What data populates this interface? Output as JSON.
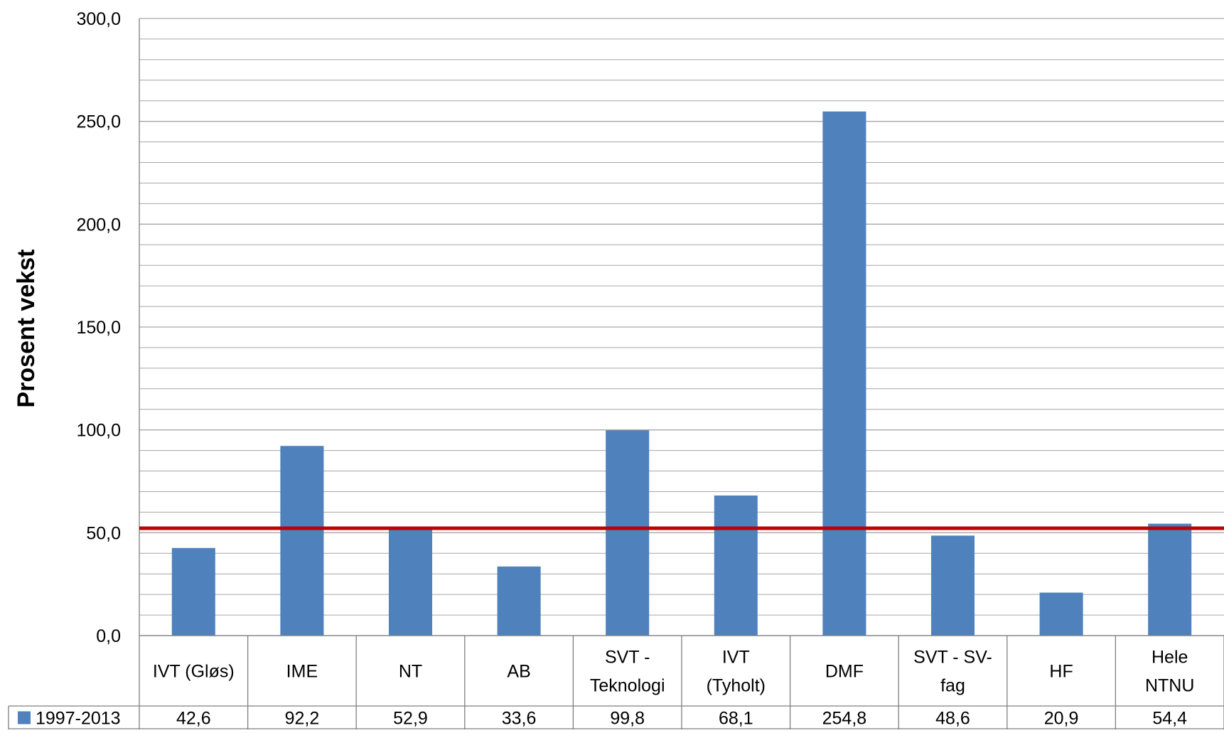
{
  "chart_data": {
    "type": "bar",
    "title": "",
    "ylabel": "Prosent vekst",
    "xlabel": "",
    "ylim": [
      0,
      300
    ],
    "y_major_ticks": [
      0,
      50,
      100,
      150,
      200,
      250,
      300
    ],
    "y_tick_labels": [
      "0,0",
      "50,0",
      "100,0",
      "150,0",
      "200,0",
      "250,0",
      "300,0"
    ],
    "y_minor_step": 10,
    "grid": true,
    "legend_placement": "data-table",
    "categories": [
      [
        "IVT (Gløs)"
      ],
      [
        "IME"
      ],
      [
        "NT"
      ],
      [
        "AB"
      ],
      [
        "SVT -",
        "Teknologi"
      ],
      [
        "IVT",
        "(Tyholt)"
      ],
      [
        "DMF"
      ],
      [
        "SVT - SV-",
        "fag"
      ],
      [
        "HF"
      ],
      [
        "Hele",
        "NTNU"
      ]
    ],
    "series": [
      {
        "name": "1997-2013",
        "color": "#4F81BD",
        "values": [
          42.6,
          92.2,
          52.9,
          33.6,
          99.8,
          68.1,
          254.8,
          48.6,
          20.9,
          54.4
        ],
        "value_labels": [
          "42,6",
          "92,2",
          "52,9",
          "33,6",
          "99,8",
          "68,1",
          "254,8",
          "48,6",
          "20,9",
          "54,4"
        ]
      }
    ],
    "reference_line": {
      "value": 52.2,
      "color": "#C00000"
    },
    "gridline_color": "#A6A6A6",
    "axis_color": "#808080"
  }
}
